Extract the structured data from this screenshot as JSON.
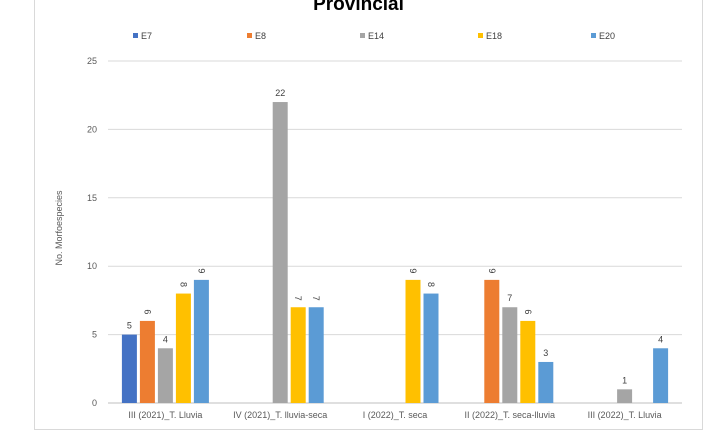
{
  "chart_data": {
    "type": "bar",
    "title": "Provincial",
    "ylabel": "No. Morfoespecies",
    "xlabel": "",
    "ylim": [
      0,
      25
    ],
    "yticks": [
      0,
      5,
      10,
      15,
      20,
      25
    ],
    "grid": true,
    "legend_position": "top",
    "categories": [
      "III (2021)_T. Lluvia",
      "IV (2021)_T. lluvia-seca",
      "I (2022)_T. seca",
      "II (2022)_T. seca-lluvia",
      "III (2022)_T. Lluvia"
    ],
    "series": [
      {
        "name": "E7",
        "color": "#4472c4",
        "values": [
          5,
          null,
          null,
          null,
          null
        ],
        "labels": [
          "5",
          "",
          "",
          "",
          ""
        ]
      },
      {
        "name": "E8",
        "color": "#ed7d31",
        "values": [
          6,
          null,
          null,
          9,
          null
        ],
        "labels": [
          "6",
          "",
          "",
          "9",
          ""
        ]
      },
      {
        "name": "E14",
        "color": "#a5a5a5",
        "values": [
          4,
          22,
          null,
          7,
          1
        ],
        "labels": [
          "4",
          "22",
          "",
          "7",
          "1"
        ]
      },
      {
        "name": "E18",
        "color": "#ffc000",
        "values": [
          8,
          7,
          9,
          6,
          null
        ],
        "labels": [
          "8",
          "7",
          "9",
          "6",
          ""
        ]
      },
      {
        "name": "E20",
        "color": "#5b9bd5",
        "values": [
          9,
          7,
          8,
          3,
          4
        ],
        "labels": [
          "9",
          "7",
          "8",
          "3",
          "4"
        ]
      }
    ]
  }
}
